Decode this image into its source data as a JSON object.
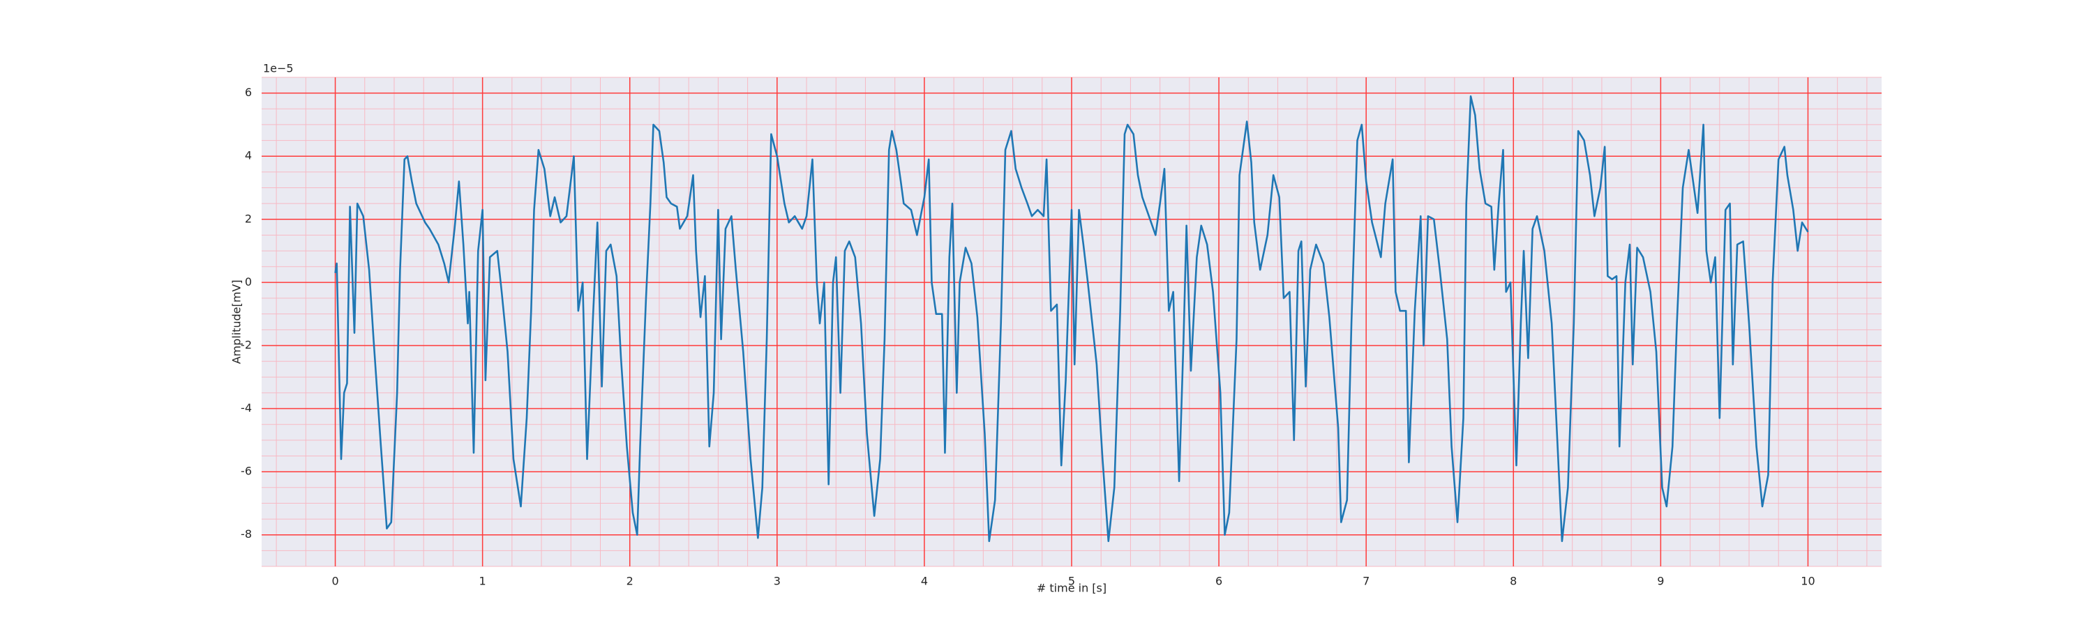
{
  "chart_data": {
    "type": "line",
    "xlabel": "# time in [s]",
    "ylabel": "Amplitude[mV]",
    "y_offset_label": "1e−5",
    "xlim": [
      -0.5,
      10.5
    ],
    "ylim": [
      -9,
      6.5
    ],
    "xticks": [
      0,
      1,
      2,
      3,
      4,
      5,
      6,
      7,
      8,
      9,
      10
    ],
    "yticks": [
      -8,
      -6,
      -4,
      -2,
      0,
      2,
      4,
      6
    ],
    "grid": true,
    "minor_grid": true,
    "grid_color": "#ff3b3b",
    "minor_grid_color": "#f7b9c4",
    "background": "#eaeaf2",
    "color": "#1f77b4",
    "x": [
      0.0,
      0.01,
      0.04,
      0.06,
      0.08,
      0.1,
      0.13,
      0.15,
      0.19,
      0.23,
      0.26,
      0.31,
      0.35,
      0.38,
      0.42,
      0.44,
      0.47,
      0.49,
      0.52,
      0.55,
      0.61,
      0.64,
      0.7,
      0.74,
      0.77,
      0.81,
      0.84,
      0.87,
      0.9,
      0.91,
      0.94,
      0.97,
      1.0,
      1.02,
      1.05,
      1.1,
      1.13,
      1.17,
      1.21,
      1.26,
      1.3,
      1.33,
      1.35,
      1.38,
      1.42,
      1.46,
      1.49,
      1.53,
      1.57,
      1.62,
      1.65,
      1.68,
      1.71,
      1.75,
      1.78,
      1.81,
      1.84,
      1.87,
      1.91,
      1.94,
      1.98,
      2.02,
      2.05,
      2.07,
      2.11,
      2.14,
      2.16,
      2.2,
      2.23,
      2.25,
      2.28,
      2.32,
      2.34,
      2.39,
      2.43,
      2.45,
      2.48,
      2.51,
      2.54,
      2.57,
      2.6,
      2.62,
      2.65,
      2.69,
      2.72,
      2.77,
      2.82,
      2.87,
      2.9,
      2.93,
      2.96,
      3.0,
      3.02,
      3.05,
      3.08,
      3.12,
      3.17,
      3.2,
      3.24,
      3.27,
      3.29,
      3.32,
      3.35,
      3.38,
      3.4,
      3.43,
      3.46,
      3.49,
      3.53,
      3.57,
      3.61,
      3.66,
      3.7,
      3.73,
      3.76,
      3.78,
      3.81,
      3.84,
      3.86,
      3.91,
      3.95,
      4.0,
      4.03,
      4.05,
      4.08,
      4.12,
      4.14,
      4.17,
      4.19,
      4.22,
      4.24,
      4.28,
      4.32,
      4.36,
      4.41,
      4.44,
      4.48,
      4.52,
      4.55,
      4.59,
      4.62,
      4.66,
      4.7,
      4.73,
      4.77,
      4.81,
      4.83,
      4.86,
      4.9,
      4.93,
      4.96,
      5.0,
      5.02,
      5.05,
      5.08,
      5.11,
      5.17,
      5.21,
      5.25,
      5.29,
      5.33,
      5.36,
      5.38,
      5.42,
      5.45,
      5.48,
      5.51,
      5.54,
      5.57,
      5.6,
      5.63,
      5.66,
      5.69,
      5.73,
      5.76,
      5.78,
      5.81,
      5.85,
      5.88,
      5.92,
      5.96,
      6.01,
      6.04,
      6.07,
      6.12,
      6.14,
      6.19,
      6.22,
      6.24,
      6.28,
      6.33,
      6.37,
      6.41,
      6.44,
      6.48,
      6.51,
      6.54,
      6.56,
      6.59,
      6.62,
      6.66,
      6.71,
      6.75,
      6.81,
      6.83,
      6.87,
      6.9,
      6.94,
      6.97,
      7.0,
      7.04,
      7.1,
      7.13,
      7.18,
      7.2,
      7.23,
      7.27,
      7.29,
      7.33,
      7.37,
      7.39,
      7.42,
      7.46,
      7.5,
      7.55,
      7.58,
      7.62,
      7.66,
      7.68,
      7.71,
      7.74,
      7.77,
      7.81,
      7.85,
      7.87,
      7.9,
      7.93,
      7.95,
      7.98,
      8.02,
      8.05,
      8.07,
      8.1,
      8.13,
      8.16,
      8.21,
      8.26,
      8.3,
      8.33,
      8.37,
      8.41,
      8.44,
      8.48,
      8.52,
      8.55,
      8.59,
      8.62,
      8.64,
      8.67,
      8.7,
      8.72,
      8.76,
      8.79,
      8.81,
      8.84,
      8.88,
      8.93,
      8.97,
      9.01,
      9.04,
      9.08,
      9.11,
      9.15,
      9.19,
      9.22,
      9.25,
      9.29,
      9.31,
      9.34,
      9.37,
      9.4,
      9.44,
      9.47,
      9.49,
      9.52,
      9.56,
      9.6,
      9.65,
      9.69,
      9.73,
      9.76,
      9.8,
      9.84,
      9.86,
      9.9,
      9.93,
      9.96,
      10.0
    ],
    "values": [
      0.3,
      0.6,
      -5.6,
      -3.5,
      -3.2,
      2.4,
      -1.6,
      2.5,
      2.1,
      0.4,
      -1.8,
      -5.2,
      -7.8,
      -7.6,
      -3.5,
      0.4,
      3.9,
      4.0,
      3.2,
      2.5,
      1.9,
      1.7,
      1.2,
      0.6,
      0.0,
      1.7,
      3.2,
      1.2,
      -1.3,
      -0.3,
      -5.4,
      1.0,
      2.3,
      -3.1,
      0.8,
      1.0,
      -0.3,
      -2.2,
      -5.6,
      -7.1,
      -4.3,
      -0.9,
      2.3,
      4.2,
      3.6,
      2.1,
      2.7,
      1.9,
      2.1,
      4.0,
      -0.9,
      0.0,
      -5.6,
      -1.1,
      1.9,
      -3.3,
      1.0,
      1.2,
      0.2,
      -2.4,
      -5.2,
      -7.3,
      -8.0,
      -5.2,
      -0.5,
      2.5,
      5.0,
      4.8,
      3.8,
      2.7,
      2.5,
      2.4,
      1.7,
      2.1,
      3.4,
      1.0,
      -1.1,
      0.2,
      -5.2,
      -3.5,
      2.3,
      -1.8,
      1.7,
      2.1,
      0.4,
      -2.2,
      -5.6,
      -8.1,
      -6.5,
      -1.8,
      4.7,
      4.0,
      3.4,
      2.5,
      1.9,
      2.1,
      1.7,
      2.1,
      3.9,
      0.0,
      -1.3,
      0.0,
      -6.4,
      0.0,
      0.8,
      -3.5,
      1.0,
      1.3,
      0.8,
      -1.3,
      -4.8,
      -7.4,
      -5.6,
      -1.8,
      4.2,
      4.8,
      4.2,
      3.2,
      2.5,
      2.3,
      1.5,
      2.7,
      3.9,
      0.0,
      -1.0,
      -1.0,
      -5.4,
      0.8,
      2.5,
      -3.5,
      0.0,
      1.1,
      0.6,
      -1.1,
      -4.8,
      -8.2,
      -6.9,
      -1.3,
      4.2,
      4.8,
      3.6,
      3.0,
      2.5,
      2.1,
      2.3,
      2.1,
      3.9,
      -0.9,
      -0.7,
      -5.8,
      -3.1,
      2.3,
      -2.6,
      2.3,
      1.2,
      0.0,
      -2.6,
      -5.6,
      -8.2,
      -6.5,
      -0.9,
      4.7,
      5.0,
      4.7,
      3.4,
      2.7,
      2.3,
      1.9,
      1.5,
      2.5,
      3.6,
      -0.9,
      -0.3,
      -6.3,
      -1.8,
      1.8,
      -2.8,
      0.8,
      1.8,
      1.2,
      -0.3,
      -3.5,
      -8.0,
      -7.3,
      -1.8,
      3.4,
      5.1,
      3.8,
      1.9,
      0.4,
      1.5,
      3.4,
      2.7,
      -0.5,
      -0.3,
      -5.0,
      1.0,
      1.3,
      -3.3,
      0.4,
      1.2,
      0.6,
      -1.1,
      -4.6,
      -7.6,
      -6.9,
      -1.3,
      4.5,
      5.0,
      3.2,
      1.9,
      0.8,
      2.5,
      3.9,
      -0.3,
      -0.9,
      -0.9,
      -5.7,
      -0.9,
      2.1,
      -2.0,
      2.1,
      2.0,
      0.4,
      -1.8,
      -5.2,
      -7.6,
      -4.3,
      2.5,
      5.9,
      5.3,
      3.6,
      2.5,
      2.4,
      0.4,
      2.5,
      4.2,
      -0.3,
      0.0,
      -5.8,
      -1.3,
      1.0,
      -2.4,
      1.7,
      2.1,
      1.0,
      -1.3,
      -5.2,
      -8.2,
      -6.5,
      -1.3,
      4.8,
      4.5,
      3.4,
      2.1,
      3.0,
      4.3,
      0.2,
      0.1,
      0.2,
      -5.2,
      0.0,
      1.2,
      -2.6,
      1.1,
      0.8,
      -0.3,
      -2.2,
      -6.5,
      -7.1,
      -5.2,
      -1.3,
      3.0,
      4.2,
      3.2,
      2.2,
      5.0,
      1.0,
      0.0,
      0.8,
      -4.3,
      2.3,
      2.5,
      -2.6,
      1.2,
      1.3,
      -1.3,
      -5.2,
      -7.1,
      -6.1,
      0.0,
      3.9,
      4.3,
      3.4,
      2.3,
      1.0,
      1.9,
      1.6
    ]
  }
}
